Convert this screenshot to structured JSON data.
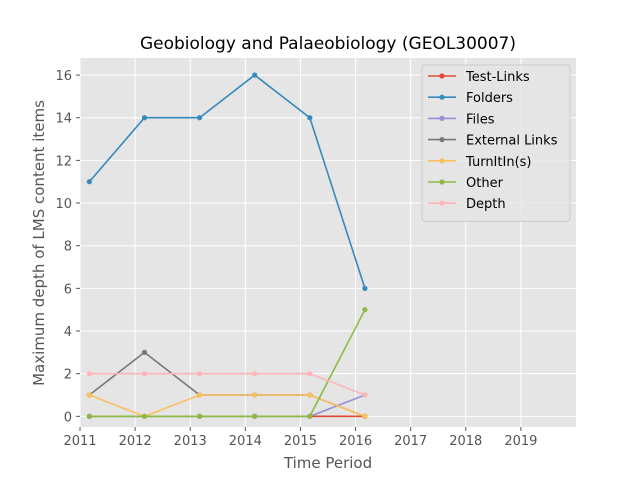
{
  "chart_data": {
    "type": "line",
    "title": "Geobiology and Palaeobiology (GEOL30007)",
    "xlabel": "Time Period",
    "ylabel": "Maximum depth of LMS content items",
    "xlim": [
      2011,
      2020
    ],
    "ylim": [
      -0.5,
      16.8
    ],
    "xticks": [
      2011,
      2012,
      2013,
      2014,
      2015,
      2016,
      2017,
      2018,
      2019
    ],
    "yticks": [
      0,
      2,
      4,
      6,
      8,
      10,
      12,
      14,
      16
    ],
    "grid": true,
    "legend_position": "top-right",
    "x": [
      2011.17,
      2012.17,
      2013.17,
      2014.17,
      2015.17,
      2016.17
    ],
    "series": [
      {
        "name": "Test-Links",
        "color": "#E24A33",
        "values": [
          0,
          0,
          0,
          0,
          0,
          0
        ]
      },
      {
        "name": "Folders",
        "color": "#348ABD",
        "values": [
          11,
          14,
          14,
          16,
          14,
          6
        ]
      },
      {
        "name": "Files",
        "color": "#988ED5",
        "values": [
          0,
          0,
          0,
          0,
          0,
          1
        ]
      },
      {
        "name": "External Links",
        "color": "#777777",
        "values": [
          1,
          3,
          1,
          1,
          1,
          0
        ]
      },
      {
        "name": "TurnItIn(s)",
        "color": "#FBC15E",
        "values": [
          1,
          0,
          1,
          1,
          1,
          0
        ]
      },
      {
        "name": "Other",
        "color": "#8EBA42",
        "values": [
          0,
          0,
          0,
          0,
          0,
          5
        ]
      },
      {
        "name": "Depth",
        "color": "#FFB5B8",
        "values": [
          2,
          2,
          2,
          2,
          2,
          1
        ]
      }
    ]
  }
}
